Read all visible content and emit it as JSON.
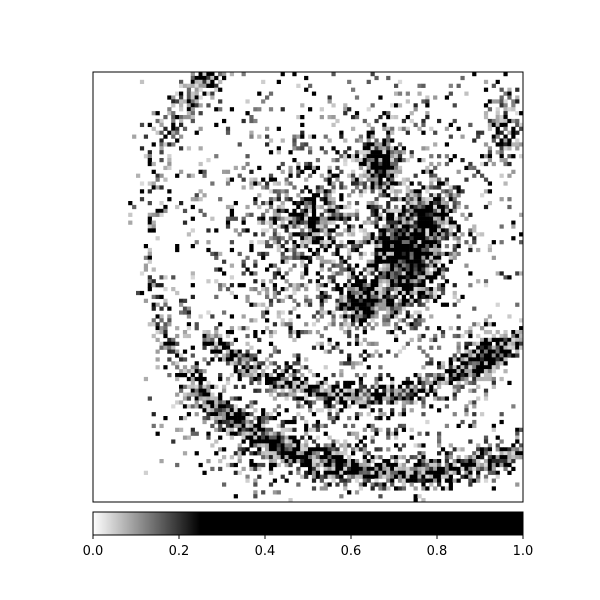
{
  "chart_data": {
    "type": "heatmap",
    "title": "",
    "xlabel": "",
    "ylabel": "",
    "x_ticks_visible": false,
    "y_ticks_visible": false,
    "colormap": {
      "name": "gray_r",
      "colors": [
        "#ffffff",
        "#000000"
      ],
      "saturates_at": 0.25
    },
    "colorbar": {
      "orientation": "horizontal",
      "placement": "bottom",
      "range": [
        0.0,
        1.0
      ],
      "ticks": [
        {
          "value": 0.0,
          "label": "0.0"
        },
        {
          "value": 0.2,
          "label": "0.2"
        },
        {
          "value": 0.4,
          "label": "0.4"
        },
        {
          "value": 0.6,
          "label": "0.6"
        },
        {
          "value": 0.8,
          "label": "0.8"
        },
        {
          "value": 1.0,
          "label": "1.0"
        }
      ]
    },
    "image_description_values": {
      "background_level": 0.0,
      "edge_texture_level": 0.12,
      "dense_cluster_level": 0.9
    }
  }
}
